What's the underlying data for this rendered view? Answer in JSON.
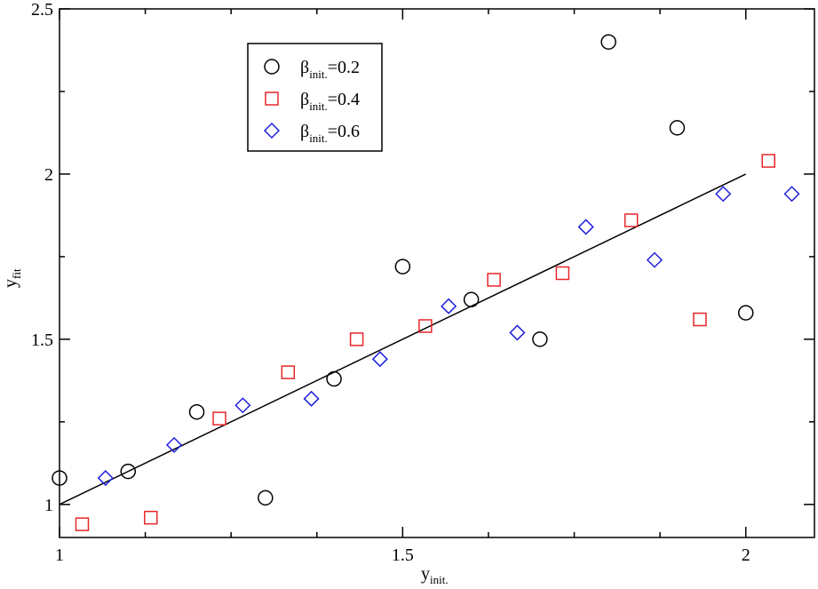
{
  "chart_data": {
    "type": "scatter",
    "xlabel": {
      "base": "y",
      "sub": "init."
    },
    "ylabel": {
      "base": "y",
      "sub": "fit"
    },
    "xlim": [
      1.0,
      2.1
    ],
    "ylim": [
      0.9,
      2.5
    ],
    "x_ticks": [
      {
        "value": 1,
        "label": "1"
      },
      {
        "value": 1.5,
        "label": "1.5"
      },
      {
        "value": 2,
        "label": "2"
      }
    ],
    "y_ticks": [
      {
        "value": 1,
        "label": "1"
      },
      {
        "value": 1.5,
        "label": "1.5"
      },
      {
        "value": 2,
        "label": "2"
      },
      {
        "value": 2.5,
        "label": "2.5"
      }
    ],
    "x_minor_step": 0.125,
    "y_minor_step": 0.25,
    "grid": false,
    "legend_position": "top-left",
    "reference_line": {
      "x": [
        1.0,
        2.0
      ],
      "y": [
        1.0,
        2.0
      ],
      "color": "#000000"
    },
    "series": [
      {
        "name": "β",
        "name_sub": "init.",
        "name_suffix": "=0.2",
        "marker": "circle",
        "color": "#000000",
        "x": [
          1.0,
          1.1,
          1.2,
          1.3,
          1.4,
          1.5,
          1.6,
          1.7,
          1.8,
          1.9,
          2.0
        ],
        "y": [
          1.08,
          1.1,
          1.28,
          1.02,
          1.38,
          1.72,
          1.62,
          1.5,
          2.4,
          2.14,
          1.58
        ]
      },
      {
        "name": "β",
        "name_sub": "init.",
        "name_suffix": "=0.4",
        "marker": "square",
        "color": "#e8262a",
        "x": [
          1.033,
          1.133,
          1.233,
          1.333,
          1.433,
          1.533,
          1.633,
          1.733,
          1.833,
          1.933,
          2.033
        ],
        "y": [
          0.94,
          0.96,
          1.26,
          1.4,
          1.5,
          1.54,
          1.68,
          1.7,
          1.86,
          1.56,
          2.04
        ]
      },
      {
        "name": "β",
        "name_sub": "init.",
        "name_suffix": "=0.6",
        "marker": "diamond",
        "color": "#1f1fdc",
        "x": [
          1.067,
          1.167,
          1.267,
          1.367,
          1.467,
          1.567,
          1.667,
          1.767,
          1.867,
          1.967,
          2.067
        ],
        "y": [
          1.08,
          1.18,
          1.3,
          1.32,
          1.44,
          1.6,
          1.52,
          1.84,
          1.74,
          1.94,
          1.94
        ]
      }
    ]
  }
}
